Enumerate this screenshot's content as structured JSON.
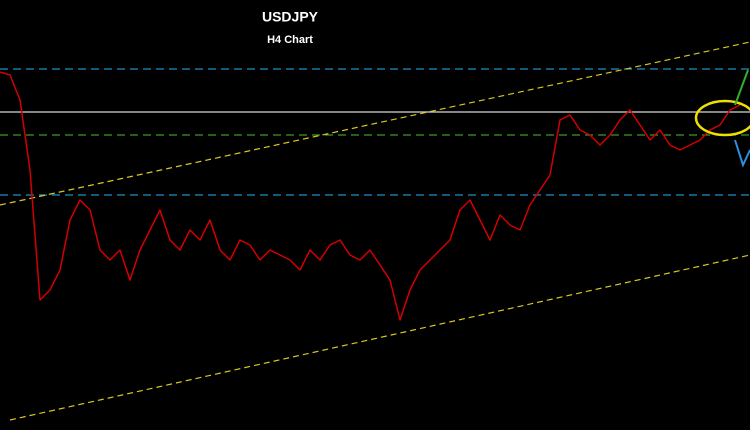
{
  "chart_data": {
    "type": "line",
    "title": "USDJPY",
    "subtitle": "H4 Chart",
    "color": "#d40000",
    "values": [
      358,
      355,
      330,
      260,
      130,
      140,
      160,
      210,
      230,
      220,
      180,
      170,
      180,
      150,
      180,
      200,
      220,
      190,
      180,
      200,
      190,
      210,
      180,
      170,
      190,
      185,
      170,
      180,
      175,
      170,
      160,
      180,
      170,
      185,
      190,
      175,
      170,
      180,
      165,
      150,
      110,
      140,
      160,
      170,
      180,
      190,
      220,
      230,
      210,
      190,
      215,
      205,
      200,
      225,
      240,
      255,
      310,
      315,
      300,
      295,
      285,
      295,
      310,
      320,
      305,
      290,
      300,
      285,
      280,
      285,
      290,
      300,
      305,
      320,
      325
    ],
    "ylim": [
      0,
      430
    ],
    "levels": [
      {
        "value": 361,
        "color": "#1e90c8",
        "style": "dashed"
      },
      {
        "value": 318,
        "color": "#d8d8d8",
        "style": "solid"
      },
      {
        "value": 295,
        "color": "#3a9a2a",
        "style": "dashed"
      },
      {
        "value": 235,
        "color": "#1e90c8",
        "style": "dashed"
      }
    ]
  }
}
